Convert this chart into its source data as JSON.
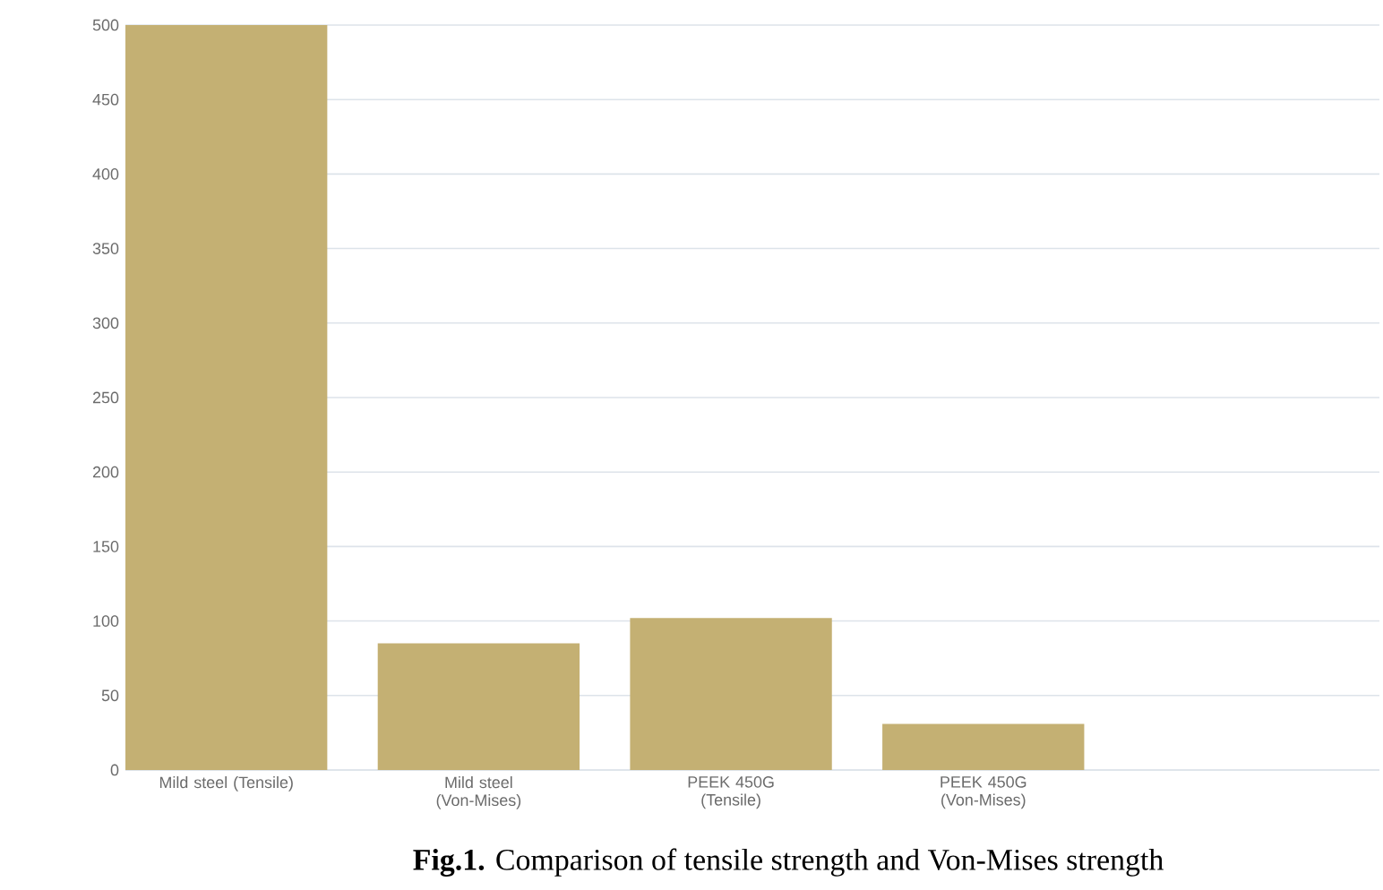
{
  "chart_data": {
    "type": "bar",
    "title": "**Fig.1.** Comparison of tensile strength and Von-Mises strength",
    "categories": [
      "Mild steel (Tensile)",
      "Mild steel (Von-Mises)",
      "PEEK 450G (Tensile)",
      "PEEK 450G (Von-Mises)"
    ],
    "values": [
      500,
      85,
      102,
      31
    ],
    "color": "#c4b073",
    "ylim": [
      0,
      500
    ],
    "yticks": [
      0,
      50,
      100,
      150,
      200,
      250,
      300,
      350,
      400,
      450,
      500
    ],
    "grid": "y"
  }
}
